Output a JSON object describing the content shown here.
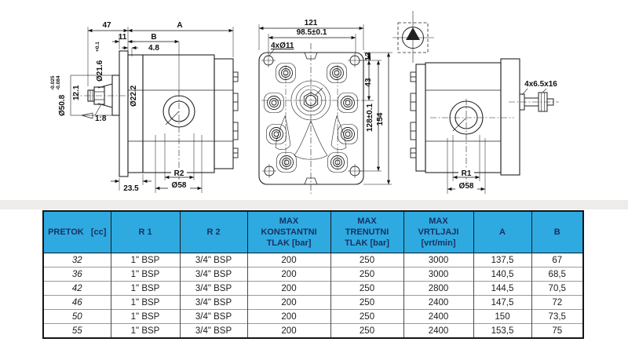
{
  "colors": {
    "header_bg": "#2eaae1",
    "header_text": "#1b2f5e",
    "line": "#222222",
    "separator_band": "#eeeceb"
  },
  "drawings": {
    "left_view": {
      "dim_top_shaft": "47",
      "dim_top_overall": "A",
      "dim_flange_thickness": "11",
      "dim_to_port": "B",
      "dim_step": "4.8",
      "dia_shaft": "Ø21.6",
      "dia_shaft_tol": "+0.1",
      "dia_bore": "Ø22.2",
      "dim_shaft_end": "12.1",
      "dia_spigot": "Ø50.8",
      "spigot_tol_upper": "-0.025",
      "spigot_tol_lower": "-0.084",
      "taper": "1:8",
      "dim_bottom": "23.5",
      "port_rear": "R2",
      "dia_port_boss": "Ø58"
    },
    "front_view": {
      "dim_width": "121",
      "dim_bolt_spacing": "98.5±0.1",
      "bolt_holes": "4xØ11",
      "dim_edge": "13",
      "dim_to_center": "43",
      "dim_hole_span": "128±0.1",
      "dim_height": "154"
    },
    "right_view": {
      "studs": "4x6.5x16",
      "port_front": "R1",
      "dia_port_boss": "Ø58"
    }
  },
  "table": {
    "columns": [
      "PRETOK   [cc]",
      "R 1",
      "R 2",
      "MAX\nKONSTANTNI\nTLAK [bar]",
      "MAX\nTRENUTNI\nTLAK [bar]",
      "MAX\nVRTLJAJI\n[vrt/min]",
      "A",
      "B"
    ],
    "rows": [
      [
        "32",
        "1\" BSP",
        "3/4\" BSP",
        "200",
        "250",
        "3000",
        "137,5",
        "67"
      ],
      [
        "36",
        "1\" BSP",
        "3/4\" BSP",
        "200",
        "250",
        "3000",
        "140,5",
        "68,5"
      ],
      [
        "42",
        "1\" BSP",
        "3/4\" BSP",
        "200",
        "250",
        "2800",
        "144,5",
        "70,5"
      ],
      [
        "46",
        "1\" BSP",
        "3/4\" BSP",
        "200",
        "250",
        "2400",
        "147,5",
        "72"
      ],
      [
        "50",
        "1\" BSP",
        "3/4\" BSP",
        "200",
        "250",
        "2400",
        "150",
        "73,5"
      ],
      [
        "55",
        "1\" BSP",
        "3/4\" BSP",
        "200",
        "250",
        "2400",
        "153,5",
        "75"
      ]
    ]
  }
}
